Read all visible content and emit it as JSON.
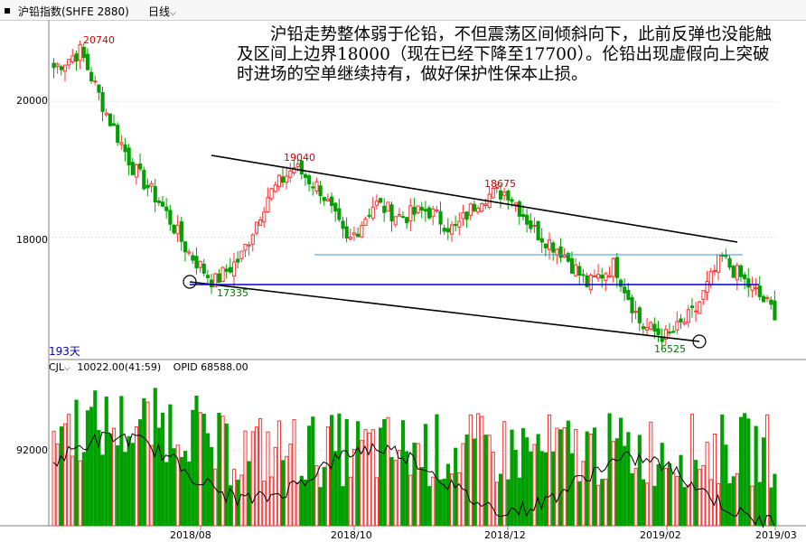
{
  "header": {
    "instrument": "沪铅指数(SHFE 2880)",
    "period": "日线",
    "period_chevron": "chevron-down-icon"
  },
  "annotation": "沪铅走势整体弱于伦铅，不但震荡区间倾斜向下，此前反弹也没能触及区间上边界18000（现在已经下降至17700）。伦铅出现虚假向上突破时进场的空单继续持有，做好保护性保本止损。",
  "price_axis": {
    "ticks": [
      "20000",
      "18000"
    ]
  },
  "volume_axis": {
    "ticks": [
      "92000"
    ]
  },
  "x_axis": {
    "labels": [
      "2018/08",
      "2018/10",
      "2018/12",
      "2019/02",
      "2019/03"
    ]
  },
  "price_labels": {
    "peaks": [
      "20740",
      "19040",
      "18675"
    ],
    "troughs": [
      "17335",
      "16525"
    ]
  },
  "period_label": "193天",
  "volume_legend": {
    "name": "CJL",
    "chevron": "chevron-down-icon",
    "value": "10022.00(41:59)",
    "opid": "OPID 68588.00"
  },
  "colors": {
    "up": "#ff3232",
    "down": "#00a000",
    "trendline": "#000000",
    "support": "#0000cc",
    "resistance_old": "#3399dd",
    "grid": "#c8c8c8"
  },
  "chart_data": [
    {
      "type": "candlestick",
      "title": "沪铅指数(SHFE 2880)",
      "ylim": [
        16200,
        21200
      ],
      "notable_levels": {
        "high": 20740,
        "swing_high_1": 19040,
        "swing_high_2": 18675,
        "low_1": 17335,
        "low_2": 16525
      },
      "close_path": [
        [
          "2018/06",
          20500
        ],
        [
          "2018/06",
          20740
        ],
        [
          "2018/07",
          19800
        ],
        [
          "2018/07",
          19000
        ],
        [
          "2018/07",
          18500
        ],
        [
          "2018/08",
          17800
        ],
        [
          "2018/08",
          17335
        ],
        [
          "2018/08",
          17700
        ],
        [
          "2018/09",
          18600
        ],
        [
          "2018/09",
          19040
        ],
        [
          "2018/10",
          18700
        ],
        [
          "2018/10",
          17900
        ],
        [
          "2018/10",
          18500
        ],
        [
          "2018/11",
          18300
        ],
        [
          "2018/11",
          18400
        ],
        [
          "2018/11",
          18100
        ],
        [
          "2018/12",
          18600
        ],
        [
          "2018/12",
          18675
        ],
        [
          "2018/12",
          18100
        ],
        [
          "2019/01",
          17800
        ],
        [
          "2019/01",
          17300
        ],
        [
          "2019/01",
          17600
        ],
        [
          "2019/02",
          16700
        ],
        [
          "2019/02",
          16525
        ],
        [
          "2019/02",
          16900
        ],
        [
          "2019/03",
          17700
        ],
        [
          "2019/03",
          17300
        ],
        [
          "2019/03",
          16900
        ]
      ],
      "lines": [
        {
          "kind": "descending-resistance",
          "from": 19400,
          "to": 17950
        },
        {
          "kind": "descending-support",
          "from": 17335,
          "to": 16525
        },
        {
          "kind": "horizontal-support",
          "level": 17350
        },
        {
          "kind": "horizontal-resistance",
          "level": 17800
        }
      ]
    },
    {
      "type": "bar",
      "title": "CJL",
      "value_label": "10022.00(41:59)",
      "ylim": [
        80000,
        104000
      ],
      "tick": 92000
    }
  ]
}
